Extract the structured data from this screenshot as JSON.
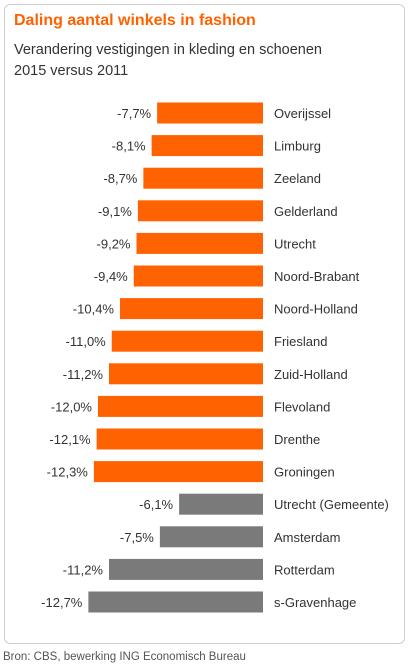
{
  "header": {
    "title": "Daling aantal winkels in fashion",
    "subtitle_line1": "Verandering vestigingen in kleding en schoenen",
    "subtitle_line2": "2015 versus 2011"
  },
  "footnote": "Bron: CBS, bewerking ING Economisch Bureau",
  "colors": {
    "provinces": "#ff6200",
    "cities": "#7a7a7a",
    "text": "#333333"
  },
  "chart_data": {
    "type": "bar",
    "orientation": "horizontal",
    "unit": "%",
    "title": "Daling aantal winkels in fashion",
    "subtitle": "Verandering vestigingen in kleding en schoenen 2015 versus 2011",
    "categories": [
      "Overijssel",
      "Limburg",
      "Zeeland",
      "Gelderland",
      "Utrecht",
      "Noord-Brabant",
      "Noord-Holland",
      "Friesland",
      "Zuid-Holland",
      "Flevoland",
      "Drenthe",
      "Groningen",
      "Utrecht (Gemeente)",
      "Amsterdam",
      "Rotterdam",
      "s-Gravenhage"
    ],
    "values": [
      -7.7,
      -8.1,
      -8.7,
      -9.1,
      -9.2,
      -9.4,
      -10.4,
      -11.0,
      -11.2,
      -12.0,
      -12.1,
      -12.3,
      -6.1,
      -7.5,
      -11.2,
      -12.7
    ],
    "value_labels": [
      "-7,7%",
      "-8,1%",
      "-8,7%",
      "-9,1%",
      "-9,2%",
      "-9,4%",
      "-10,4%",
      "-11,0%",
      "-11,2%",
      "-12,0%",
      "-12,1%",
      "-12,3%",
      "-6,1%",
      "-7,5%",
      "-11,2%",
      "-12,7%"
    ],
    "groups": [
      "province",
      "province",
      "province",
      "province",
      "province",
      "province",
      "province",
      "province",
      "province",
      "province",
      "province",
      "province",
      "city",
      "city",
      "city",
      "city"
    ],
    "xlim": [
      -12.7,
      0
    ],
    "grid": false,
    "legend": "none"
  }
}
